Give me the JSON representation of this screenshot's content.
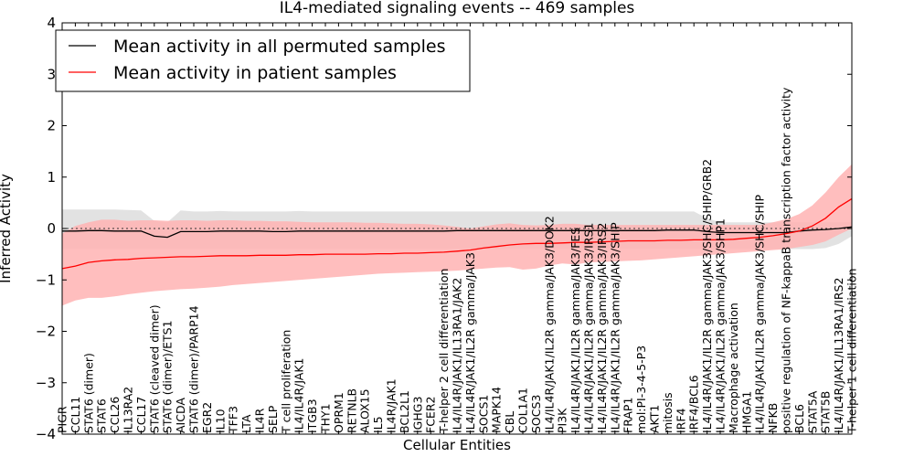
{
  "chart_data": {
    "type": "line",
    "title": "IL4-mediated signaling events -- 469 samples",
    "xlabel": "Cellular Entities",
    "ylabel": "Inferred Activity",
    "ylim": [
      -4,
      4
    ],
    "yticks": [
      -4,
      -3,
      -2,
      -1,
      0,
      1,
      2,
      3,
      4
    ],
    "ytick_labels": [
      "−4",
      "−3",
      "−2",
      "−1",
      "0",
      "1",
      "2",
      "3",
      "4"
    ],
    "grid": false,
    "legend_position": "top-left",
    "baseline": 0,
    "categories": [
      "PIGR",
      "CCL11",
      "STAT6 (dimer)",
      "STAT6",
      "CCL26",
      "IL13RA2",
      "CCL17",
      "STAT6 (cleaved dimer)",
      "STAT6 (dimer)/ETS1",
      "AICDA",
      "STAT6 (dimer)/PARP14",
      "EGR2",
      "IL10",
      "TFF3",
      "LTA",
      "IL4R",
      "SELP",
      "T cell proliferation",
      "IL4/IL4R/JAK1",
      "ITGB3",
      "THY1",
      "OPRM1",
      "RETNLB",
      "ALOX15",
      "IL5",
      "IL4R/JAK1",
      "BCL2L1",
      "IGHG3",
      "FCER2",
      "T-helper 2 cell differentiation",
      "IL4/IL4R/JAK1/IL13RA1/JAK2",
      "IL4/IL4R/JAK1/IL2R gamma/JAK3",
      "SOCS1",
      "MAPK14",
      "CBL",
      "COL1A1",
      "SOCS3",
      "IL4/IL4R/JAK1/IL2R gamma/JAK3/DOK2",
      "PI3K",
      "IL4/IL4R/JAK1/IL2R gamma/JAK3/FES",
      "IL4/IL4R/JAK1/IL2R gamma/JAK3/IRS1",
      "IL4/IL4R/JAK1/IL2R gamma/JAK3/IRS2",
      "IL4/IL4R/JAK1/IL2R gamma/JAK3/SHIP",
      "FRAP1",
      "mol:PI-3-4-5-P3",
      "AKT1",
      "mitosis",
      "IRF4",
      "IRF4/BCL6",
      "IL4/IL4R/JAK1/IL2R gamma/JAK3/SHC/SHIP/GRB2",
      "IL4/IL4R/JAK1/IL2R gamma/JAK3/SHP1",
      "Macrophage activation",
      "HMGA1",
      "IL4/IL4R/JAK1/IL2R gamma/JAK3/SHC/SHIP",
      "NFKB",
      "positive regulation of NF-kappaB transcription factor activity",
      "BCL6",
      "STAT5A",
      "STAT5B",
      "IL4/IL4R/JAK1/IL13RA1/IRS2",
      "T-helper 1 cell differentiation"
    ],
    "series": [
      {
        "name": "Mean activity in all permuted samples",
        "color": "#000000",
        "values": [
          -0.05,
          -0.05,
          -0.04,
          -0.04,
          -0.05,
          -0.05,
          -0.05,
          -0.15,
          -0.17,
          -0.06,
          -0.06,
          -0.06,
          -0.05,
          -0.05,
          -0.05,
          -0.05,
          -0.06,
          -0.06,
          -0.05,
          -0.05,
          -0.05,
          -0.05,
          -0.05,
          -0.05,
          -0.05,
          -0.05,
          -0.05,
          -0.05,
          -0.05,
          -0.05,
          -0.04,
          -0.04,
          -0.04,
          -0.04,
          -0.04,
          -0.04,
          -0.04,
          -0.04,
          -0.04,
          -0.04,
          -0.04,
          -0.04,
          -0.04,
          -0.04,
          -0.04,
          -0.04,
          -0.03,
          -0.03,
          -0.03,
          -0.06,
          -0.08,
          -0.08,
          -0.08,
          -0.08,
          -0.08,
          -0.08,
          -0.05,
          -0.03,
          -0.02,
          0.0,
          0.03
        ],
        "band_upper": [
          0.37,
          0.37,
          0.37,
          0.37,
          0.37,
          0.36,
          0.35,
          0.15,
          0.12,
          0.35,
          0.33,
          0.33,
          0.34,
          0.33,
          0.33,
          0.33,
          0.33,
          0.33,
          0.34,
          0.33,
          0.33,
          0.33,
          0.33,
          0.33,
          0.33,
          0.33,
          0.33,
          0.33,
          0.33,
          0.33,
          0.33,
          0.33,
          0.33,
          0.33,
          0.33,
          0.33,
          0.33,
          0.33,
          0.33,
          0.33,
          0.33,
          0.33,
          0.33,
          0.33,
          0.33,
          0.33,
          0.33,
          0.33,
          0.33,
          0.2,
          0.12,
          0.12,
          0.12,
          0.12,
          0.12,
          0.12,
          0.12,
          0.12,
          0.12,
          0.12,
          0.12
        ],
        "band_lower": [
          -0.4,
          -0.4,
          -0.4,
          -0.4,
          -0.4,
          -0.4,
          -0.4,
          -0.4,
          -0.4,
          -0.4,
          -0.4,
          -0.4,
          -0.4,
          -0.4,
          -0.4,
          -0.4,
          -0.4,
          -0.4,
          -0.4,
          -0.4,
          -0.4,
          -0.4,
          -0.4,
          -0.4,
          -0.4,
          -0.4,
          -0.4,
          -0.4,
          -0.4,
          -0.4,
          -0.4,
          -0.4,
          -0.4,
          -0.4,
          -0.4,
          -0.4,
          -0.4,
          -0.4,
          -0.4,
          -0.4,
          -0.4,
          -0.4,
          -0.4,
          -0.4,
          -0.4,
          -0.4,
          -0.4,
          -0.4,
          -0.4,
          -0.4,
          -0.4,
          -0.4,
          -0.4,
          -0.4,
          -0.4,
          -0.4,
          -0.4,
          -0.4,
          -0.38,
          -0.3,
          -0.15
        ],
        "band_color": "#d8d8d8"
      },
      {
        "name": "Mean activity in patient samples",
        "color": "#ff0000",
        "values": [
          -0.78,
          -0.73,
          -0.66,
          -0.63,
          -0.61,
          -0.6,
          -0.58,
          -0.57,
          -0.56,
          -0.55,
          -0.55,
          -0.54,
          -0.53,
          -0.53,
          -0.53,
          -0.52,
          -0.52,
          -0.52,
          -0.51,
          -0.51,
          -0.5,
          -0.5,
          -0.5,
          -0.5,
          -0.49,
          -0.49,
          -0.48,
          -0.48,
          -0.47,
          -0.46,
          -0.44,
          -0.42,
          -0.38,
          -0.35,
          -0.32,
          -0.3,
          -0.29,
          -0.29,
          -0.28,
          -0.27,
          -0.27,
          -0.26,
          -0.25,
          -0.24,
          -0.24,
          -0.24,
          -0.23,
          -0.23,
          -0.22,
          -0.22,
          -0.22,
          -0.21,
          -0.19,
          -0.17,
          -0.14,
          -0.1,
          -0.05,
          0.05,
          0.2,
          0.42,
          0.58
        ],
        "band_upper": [
          -0.1,
          0.05,
          0.12,
          0.17,
          0.17,
          0.15,
          0.16,
          0.16,
          0.15,
          0.16,
          0.16,
          0.15,
          0.16,
          0.16,
          0.15,
          0.15,
          0.14,
          0.14,
          0.13,
          0.12,
          0.12,
          0.12,
          0.12,
          0.11,
          0.11,
          0.1,
          0.09,
          0.09,
          0.08,
          0.06,
          0.03,
          0.0,
          0.04,
          0.08,
          0.1,
          0.07,
          0.06,
          0.07,
          0.09,
          0.09,
          0.07,
          0.07,
          0.07,
          0.07,
          0.07,
          0.07,
          0.07,
          0.07,
          0.07,
          0.07,
          0.07,
          0.07,
          0.07,
          0.07,
          0.12,
          0.18,
          0.28,
          0.45,
          0.7,
          1.0,
          1.25
        ],
        "band_lower": [
          -1.5,
          -1.4,
          -1.35,
          -1.35,
          -1.32,
          -1.28,
          -1.25,
          -1.22,
          -1.2,
          -1.18,
          -1.17,
          -1.15,
          -1.13,
          -1.1,
          -1.08,
          -1.06,
          -1.04,
          -1.02,
          -1.0,
          -0.98,
          -0.96,
          -0.94,
          -0.92,
          -0.9,
          -0.88,
          -0.87,
          -0.86,
          -0.85,
          -0.84,
          -0.83,
          -0.82,
          -0.8,
          -0.78,
          -0.76,
          -0.75,
          -0.8,
          -0.78,
          -0.72,
          -0.68,
          -0.7,
          -0.66,
          -0.65,
          -0.64,
          -0.63,
          -0.62,
          -0.6,
          -0.58,
          -0.56,
          -0.54,
          -0.52,
          -0.5,
          -0.48,
          -0.46,
          -0.44,
          -0.42,
          -0.4,
          -0.36,
          -0.32,
          -0.25,
          -0.12,
          0.0
        ],
        "band_color": "#ffb3b3"
      }
    ]
  }
}
